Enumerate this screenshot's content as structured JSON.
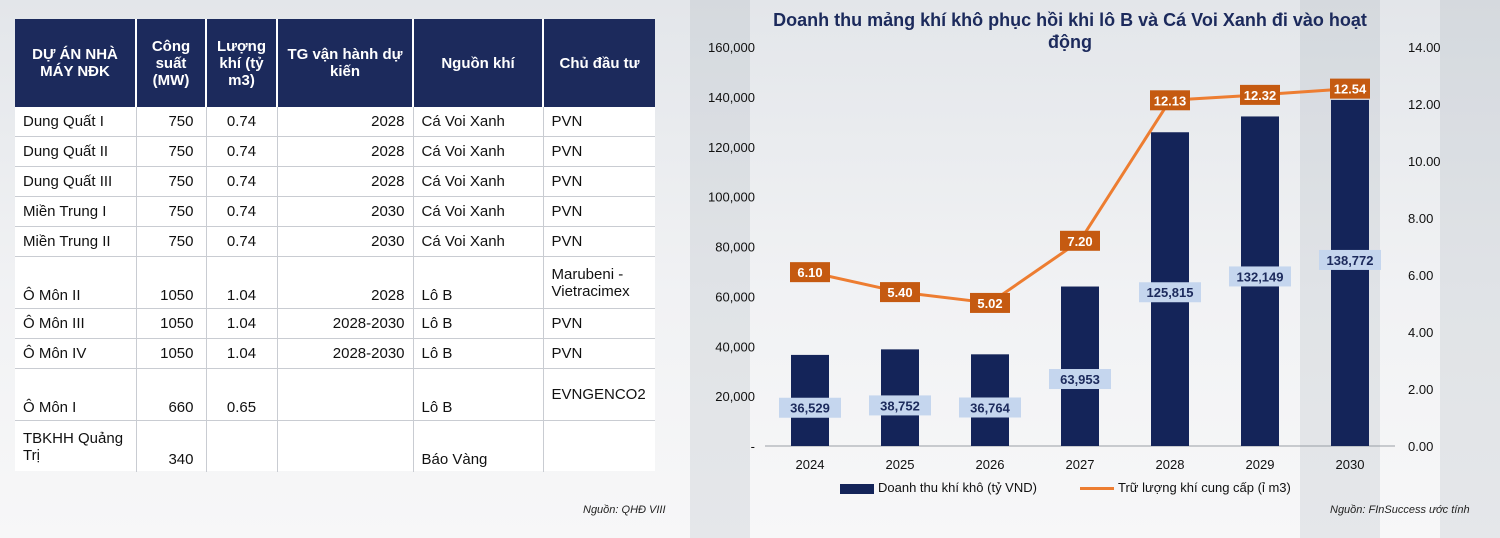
{
  "table": {
    "headers": [
      "DỰ ÁN NHÀ MÁY NĐK",
      "Công suất (MW)",
      "Lượng khí (tỷ m3)",
      "TG vận hành dự kiến",
      "Nguồn khí",
      "Chủ đầu tư"
    ],
    "rows": [
      {
        "project": "Dung Quất I",
        "capacity": "750",
        "gas": "0.74",
        "time": "2028",
        "source": "Cá Voi Xanh",
        "investor": "PVN"
      },
      {
        "project": "Dung Quất II",
        "capacity": "750",
        "gas": "0.74",
        "time": "2028",
        "source": "Cá Voi Xanh",
        "investor": "PVN"
      },
      {
        "project": "Dung Quất III",
        "capacity": "750",
        "gas": "0.74",
        "time": "2028",
        "source": "Cá Voi Xanh",
        "investor": "PVN"
      },
      {
        "project": "Miền Trung I",
        "capacity": "750",
        "gas": "0.74",
        "time": "2030",
        "source": "Cá Voi Xanh",
        "investor": "PVN"
      },
      {
        "project": "Miền Trung II",
        "capacity": "750",
        "gas": "0.74",
        "time": "2030",
        "source": "Cá Voi Xanh",
        "investor": "PVN"
      },
      {
        "project": "Ô Môn II",
        "capacity": "1050",
        "gas": "1.04",
        "time": "2028",
        "source": "Lô B",
        "investor": "Marubeni - Vietracimex"
      },
      {
        "project": "Ô Môn III",
        "capacity": "1050",
        "gas": "1.04",
        "time": "2028-2030",
        "source": "Lô B",
        "investor": "PVN"
      },
      {
        "project": "Ô Môn IV",
        "capacity": "1050",
        "gas": "1.04",
        "time": "2028-2030",
        "source": "Lô B",
        "investor": "PVN"
      },
      {
        "project": "Ô Môn I",
        "capacity": "660",
        "gas": "0.65",
        "time": "",
        "source": "Lô B",
        "investor": "EVNGENCO2"
      },
      {
        "project": "TBKHH Quảng Trị",
        "capacity": "340",
        "gas": "",
        "time": "",
        "source": "Báo Vàng",
        "investor": ""
      }
    ],
    "source_note": "Nguồn: QHĐ VIII"
  },
  "chart_data": {
    "type": "bar",
    "title": "Doanh thu mảng khí khô phục hồi khi lô B và Cá Voi Xanh đi vào hoạt động",
    "categories": [
      "2024",
      "2025",
      "2026",
      "2027",
      "2028",
      "2029",
      "2030"
    ],
    "series": [
      {
        "name": "Doanh thu khí khô (tỷ VND)",
        "type": "bar",
        "axis": "left",
        "color": "#142459",
        "values": [
          36529,
          38752,
          36764,
          63953,
          125815,
          132149,
          138772
        ],
        "labels": [
          "36,529",
          "38,752",
          "36,764",
          "63,953",
          "125,815",
          "132,149",
          "138,772"
        ]
      },
      {
        "name": "Trữ lượng khí cung cấp (ỉ m3)",
        "type": "line",
        "axis": "right",
        "color": "#ed7d31",
        "values": [
          6.1,
          5.4,
          5.02,
          7.2,
          12.13,
          12.32,
          12.54
        ],
        "labels": [
          "6.10",
          "5.40",
          "5.02",
          "7.20",
          "12.13",
          "12.32",
          "12.54"
        ]
      }
    ],
    "y_left": {
      "min": 0,
      "max": 160000,
      "ticks": [
        "-",
        "20,000",
        "40,000",
        "60,000",
        "80,000",
        "100,000",
        "120,000",
        "140,000",
        "160,000"
      ]
    },
    "y_right": {
      "min": 0,
      "max": 14,
      "ticks": [
        "0.00",
        "2.00",
        "4.00",
        "6.00",
        "8.00",
        "10.00",
        "12.00",
        "14.00"
      ]
    },
    "legend_position": "bottom",
    "grid": false,
    "source_note": "Nguồn: FInSuccess ước tính"
  }
}
